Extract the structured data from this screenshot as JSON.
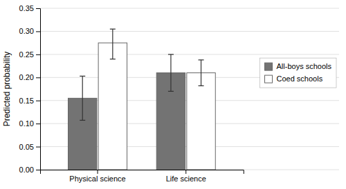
{
  "chart_data": {
    "type": "bar",
    "ylabel": "Predicted probability",
    "categories": [
      "Physical science",
      "Life science"
    ],
    "series": [
      {
        "name": "All-boys schools",
        "color": "#737373",
        "values": [
          0.155,
          0.21
        ],
        "errors_lower": [
          0.048,
          0.04
        ],
        "errors_upper": [
          0.048,
          0.04
        ]
      },
      {
        "name": "Coed schools",
        "color": "#ffffff",
        "values": [
          0.275,
          0.21
        ],
        "errors_lower": [
          0.035,
          0.028
        ],
        "errors_upper": [
          0.03,
          0.028
        ]
      }
    ],
    "ylim": [
      0.0,
      0.35
    ],
    "yticks": [
      {
        "value": 0.0,
        "label": "0.00"
      },
      0.05,
      {
        "value": 0.1,
        "label": "0.10"
      },
      0.15,
      {
        "value": 0.2,
        "label": "0.20"
      },
      0.25,
      {
        "value": 0.3,
        "label": "0.30"
      },
      0.35
    ],
    "grid": true,
    "legend": "right"
  }
}
